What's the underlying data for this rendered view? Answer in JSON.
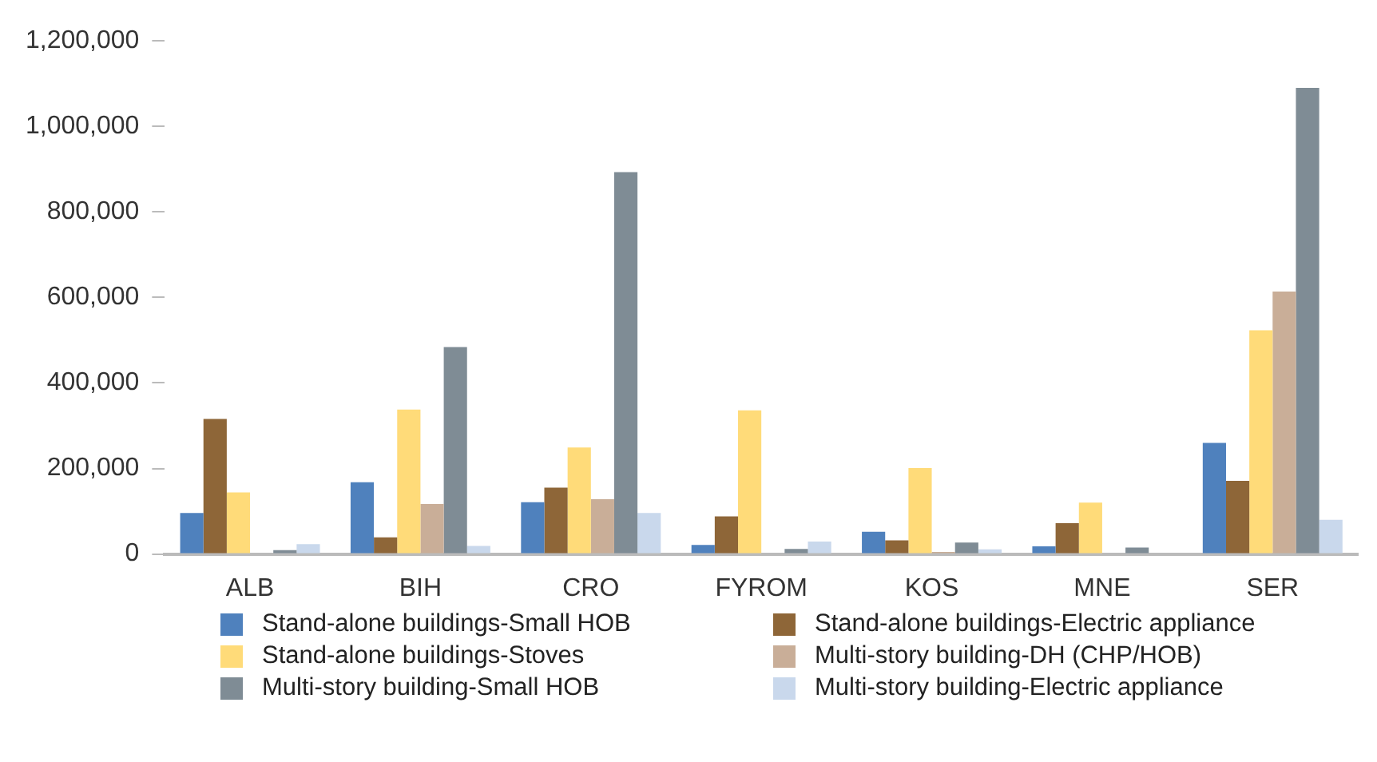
{
  "chart_data": {
    "type": "bar",
    "categories": [
      "ALB",
      "BIH",
      "CRO",
      "FYROM",
      "KOS",
      "MNE",
      "SER"
    ],
    "series": [
      {
        "name": "Stand-alone buildings-Small HOB",
        "color": "#4f81bd",
        "values": [
          96000,
          168000,
          121000,
          21000,
          52000,
          18000,
          260000
        ]
      },
      {
        "name": "Stand-alone buildings-Electric appliance",
        "color": "#8e6638",
        "values": [
          316000,
          39000,
          155000,
          88000,
          32000,
          72000,
          171000
        ]
      },
      {
        "name": "Stand-alone buildings-Stoves",
        "color": "#ffdb79",
        "values": [
          144000,
          338000,
          249000,
          336000,
          201000,
          120000,
          523000
        ]
      },
      {
        "name": "Multi-story building-DH (CHP/HOB)",
        "color": "#c9ae98",
        "values": [
          0,
          117000,
          128000,
          2000,
          5000,
          0,
          614000
        ]
      },
      {
        "name": "Multi-story building-Small HOB",
        "color": "#7f8c95",
        "values": [
          9000,
          484000,
          893000,
          12000,
          27000,
          15000,
          1090000
        ]
      },
      {
        "name": "Multi-story building-Electric appliance",
        "color": "#c9d8ec",
        "values": [
          23000,
          19000,
          96000,
          29000,
          11000,
          null,
          80000
        ]
      }
    ],
    "ylim": [
      0,
      1200000
    ],
    "yticks": [
      0,
      {
        "value": 200000,
        "label": "200,000"
      },
      {
        "value": 400000,
        "label": "400,000"
      },
      {
        "value": 600000,
        "label": "600,000"
      },
      {
        "value": 800000,
        "label": "800,000"
      },
      {
        "value": 1000000,
        "label": "1,000,000"
      },
      {
        "value": 1200000,
        "label": "1,200,000"
      }
    ],
    "grid": false,
    "legend": "bottom"
  }
}
